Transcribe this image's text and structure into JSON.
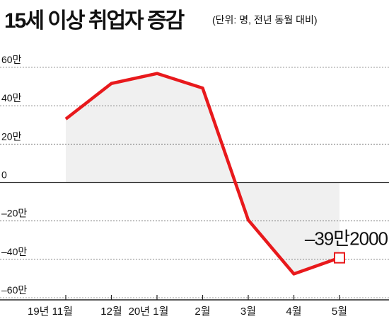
{
  "title": "15세 이상 취업자 증감",
  "unit": "(단위: 명, 전년 동월 대비)",
  "chart_data": {
    "type": "area",
    "title": "15세 이상 취업자 증감",
    "subtitle": "(단위: 명, 전년 동월 대비)",
    "xlabel": "",
    "ylabel": "",
    "categories": [
      "19년 11월",
      "12월",
      "20년 1월",
      "2월",
      "3월",
      "4월",
      "5월"
    ],
    "values": [
      331000,
      516000,
      568000,
      492000,
      -195000,
      -476000,
      -392000
    ],
    "ylim": [
      -600000,
      600000
    ],
    "yticks": [
      600000,
      400000,
      200000,
      0,
      -200000,
      -400000,
      -600000
    ],
    "ytick_labels": [
      "60만",
      "40만",
      "20만",
      "0",
      "–20만",
      "–40만",
      "–60만"
    ],
    "grid": true,
    "line_color": "#e8191c",
    "fill_color": "#f0f0f0",
    "annotation": {
      "text": "–39만2000",
      "category": "5월",
      "value": -392000
    }
  }
}
